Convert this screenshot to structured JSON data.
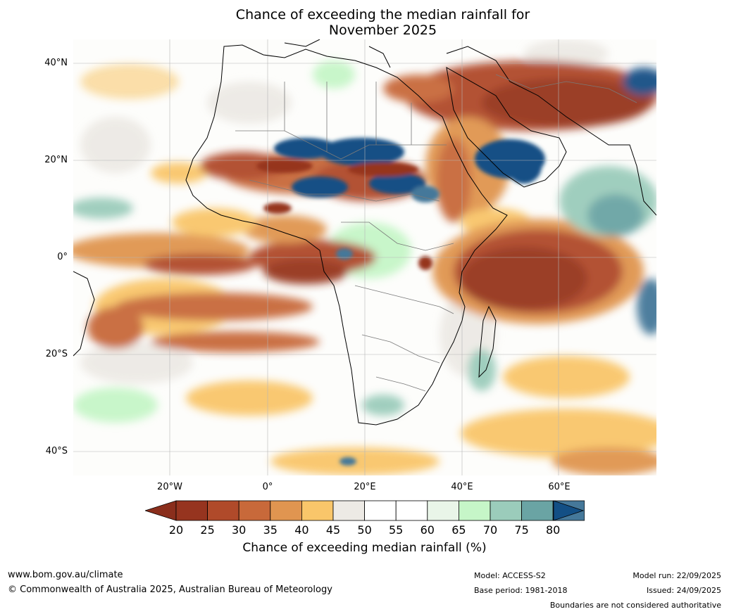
{
  "title": {
    "line1": "Chance of exceeding the median rainfall for",
    "line2": "November 2025"
  },
  "map": {
    "lat_labels": [
      "40°N",
      "20°N",
      "0°",
      "20°S",
      "40°S"
    ],
    "lon_labels": [
      "20°W",
      "0°",
      "20°E",
      "40°E",
      "60°E"
    ]
  },
  "colorbar": {
    "ticks": [
      "20",
      "25",
      "30",
      "35",
      "40",
      "45",
      "50",
      "55",
      "60",
      "65",
      "70",
      "75",
      "80"
    ],
    "colors": [
      "#96341f",
      "#b04a2a",
      "#c8693a",
      "#e09550",
      "#f9c66a",
      "#edeae5",
      "#ffffff",
      "#ffffff",
      "#e9f5e8",
      "#c6f6c8",
      "#9bccbb",
      "#6aa4a4",
      "#45789a"
    ],
    "low_extend_color": "#8a2e1c",
    "high_extend_color": "#134f85",
    "label": "Chance of exceeding median rainfall (%)"
  },
  "footer": {
    "url": "www.bom.gov.au/climate",
    "copyright": "© Commonwealth of Australia 2025, Australian Bureau of Meteorology",
    "model": "Model: ACCESS-S2",
    "base_period": "Base period: 1981-2018",
    "model_run": "Model run: 22/09/2025",
    "issued": "Issued: 24/09/2025",
    "disclaimer": "Boundaries are not considered authoritative"
  }
}
